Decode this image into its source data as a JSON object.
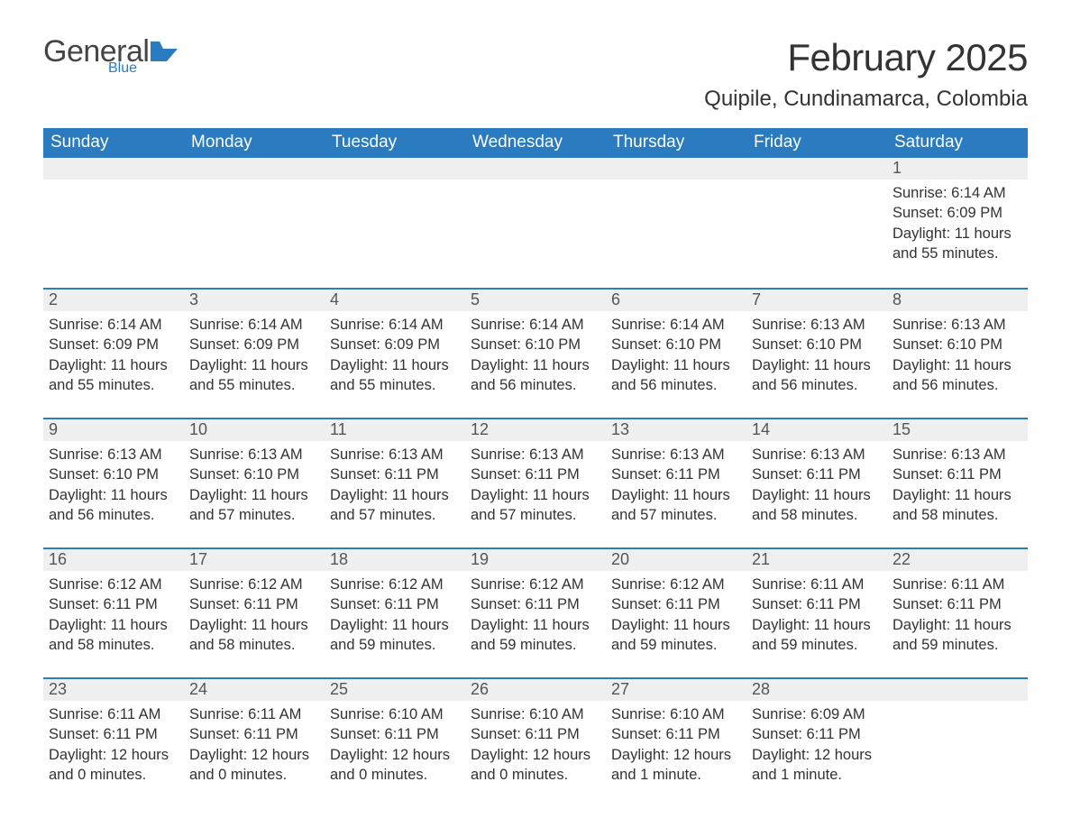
{
  "brand": {
    "word1": "General",
    "word2": "Blue",
    "flag_color": "#2a7bbf"
  },
  "title": "February 2025",
  "location": "Quipile, Cundinamarca, Colombia",
  "colors": {
    "header_bg": "#2a7bbf",
    "header_text": "#ffffff",
    "daynum_bg": "#efefef",
    "daynum_border": "#2a7bbf",
    "body_text": "#333333",
    "page_bg": "#ffffff"
  },
  "typography": {
    "title_fontsize": 42,
    "location_fontsize": 24,
    "header_fontsize": 19,
    "body_fontsize": 16.5
  },
  "weekdays": [
    "Sunday",
    "Monday",
    "Tuesday",
    "Wednesday",
    "Thursday",
    "Friday",
    "Saturday"
  ],
  "weeks": [
    [
      null,
      null,
      null,
      null,
      null,
      null,
      {
        "n": "1",
        "sunrise": "Sunrise: 6:14 AM",
        "sunset": "Sunset: 6:09 PM",
        "daylight": "Daylight: 11 hours and 55 minutes."
      }
    ],
    [
      {
        "n": "2",
        "sunrise": "Sunrise: 6:14 AM",
        "sunset": "Sunset: 6:09 PM",
        "daylight": "Daylight: 11 hours and 55 minutes."
      },
      {
        "n": "3",
        "sunrise": "Sunrise: 6:14 AM",
        "sunset": "Sunset: 6:09 PM",
        "daylight": "Daylight: 11 hours and 55 minutes."
      },
      {
        "n": "4",
        "sunrise": "Sunrise: 6:14 AM",
        "sunset": "Sunset: 6:09 PM",
        "daylight": "Daylight: 11 hours and 55 minutes."
      },
      {
        "n": "5",
        "sunrise": "Sunrise: 6:14 AM",
        "sunset": "Sunset: 6:10 PM",
        "daylight": "Daylight: 11 hours and 56 minutes."
      },
      {
        "n": "6",
        "sunrise": "Sunrise: 6:14 AM",
        "sunset": "Sunset: 6:10 PM",
        "daylight": "Daylight: 11 hours and 56 minutes."
      },
      {
        "n": "7",
        "sunrise": "Sunrise: 6:13 AM",
        "sunset": "Sunset: 6:10 PM",
        "daylight": "Daylight: 11 hours and 56 minutes."
      },
      {
        "n": "8",
        "sunrise": "Sunrise: 6:13 AM",
        "sunset": "Sunset: 6:10 PM",
        "daylight": "Daylight: 11 hours and 56 minutes."
      }
    ],
    [
      {
        "n": "9",
        "sunrise": "Sunrise: 6:13 AM",
        "sunset": "Sunset: 6:10 PM",
        "daylight": "Daylight: 11 hours and 56 minutes."
      },
      {
        "n": "10",
        "sunrise": "Sunrise: 6:13 AM",
        "sunset": "Sunset: 6:10 PM",
        "daylight": "Daylight: 11 hours and 57 minutes."
      },
      {
        "n": "11",
        "sunrise": "Sunrise: 6:13 AM",
        "sunset": "Sunset: 6:11 PM",
        "daylight": "Daylight: 11 hours and 57 minutes."
      },
      {
        "n": "12",
        "sunrise": "Sunrise: 6:13 AM",
        "sunset": "Sunset: 6:11 PM",
        "daylight": "Daylight: 11 hours and 57 minutes."
      },
      {
        "n": "13",
        "sunrise": "Sunrise: 6:13 AM",
        "sunset": "Sunset: 6:11 PM",
        "daylight": "Daylight: 11 hours and 57 minutes."
      },
      {
        "n": "14",
        "sunrise": "Sunrise: 6:13 AM",
        "sunset": "Sunset: 6:11 PM",
        "daylight": "Daylight: 11 hours and 58 minutes."
      },
      {
        "n": "15",
        "sunrise": "Sunrise: 6:13 AM",
        "sunset": "Sunset: 6:11 PM",
        "daylight": "Daylight: 11 hours and 58 minutes."
      }
    ],
    [
      {
        "n": "16",
        "sunrise": "Sunrise: 6:12 AM",
        "sunset": "Sunset: 6:11 PM",
        "daylight": "Daylight: 11 hours and 58 minutes."
      },
      {
        "n": "17",
        "sunrise": "Sunrise: 6:12 AM",
        "sunset": "Sunset: 6:11 PM",
        "daylight": "Daylight: 11 hours and 58 minutes."
      },
      {
        "n": "18",
        "sunrise": "Sunrise: 6:12 AM",
        "sunset": "Sunset: 6:11 PM",
        "daylight": "Daylight: 11 hours and 59 minutes."
      },
      {
        "n": "19",
        "sunrise": "Sunrise: 6:12 AM",
        "sunset": "Sunset: 6:11 PM",
        "daylight": "Daylight: 11 hours and 59 minutes."
      },
      {
        "n": "20",
        "sunrise": "Sunrise: 6:12 AM",
        "sunset": "Sunset: 6:11 PM",
        "daylight": "Daylight: 11 hours and 59 minutes."
      },
      {
        "n": "21",
        "sunrise": "Sunrise: 6:11 AM",
        "sunset": "Sunset: 6:11 PM",
        "daylight": "Daylight: 11 hours and 59 minutes."
      },
      {
        "n": "22",
        "sunrise": "Sunrise: 6:11 AM",
        "sunset": "Sunset: 6:11 PM",
        "daylight": "Daylight: 11 hours and 59 minutes."
      }
    ],
    [
      {
        "n": "23",
        "sunrise": "Sunrise: 6:11 AM",
        "sunset": "Sunset: 6:11 PM",
        "daylight": "Daylight: 12 hours and 0 minutes."
      },
      {
        "n": "24",
        "sunrise": "Sunrise: 6:11 AM",
        "sunset": "Sunset: 6:11 PM",
        "daylight": "Daylight: 12 hours and 0 minutes."
      },
      {
        "n": "25",
        "sunrise": "Sunrise: 6:10 AM",
        "sunset": "Sunset: 6:11 PM",
        "daylight": "Daylight: 12 hours and 0 minutes."
      },
      {
        "n": "26",
        "sunrise": "Sunrise: 6:10 AM",
        "sunset": "Sunset: 6:11 PM",
        "daylight": "Daylight: 12 hours and 0 minutes."
      },
      {
        "n": "27",
        "sunrise": "Sunrise: 6:10 AM",
        "sunset": "Sunset: 6:11 PM",
        "daylight": "Daylight: 12 hours and 1 minute."
      },
      {
        "n": "28",
        "sunrise": "Sunrise: 6:09 AM",
        "sunset": "Sunset: 6:11 PM",
        "daylight": "Daylight: 12 hours and 1 minute."
      },
      null
    ]
  ]
}
